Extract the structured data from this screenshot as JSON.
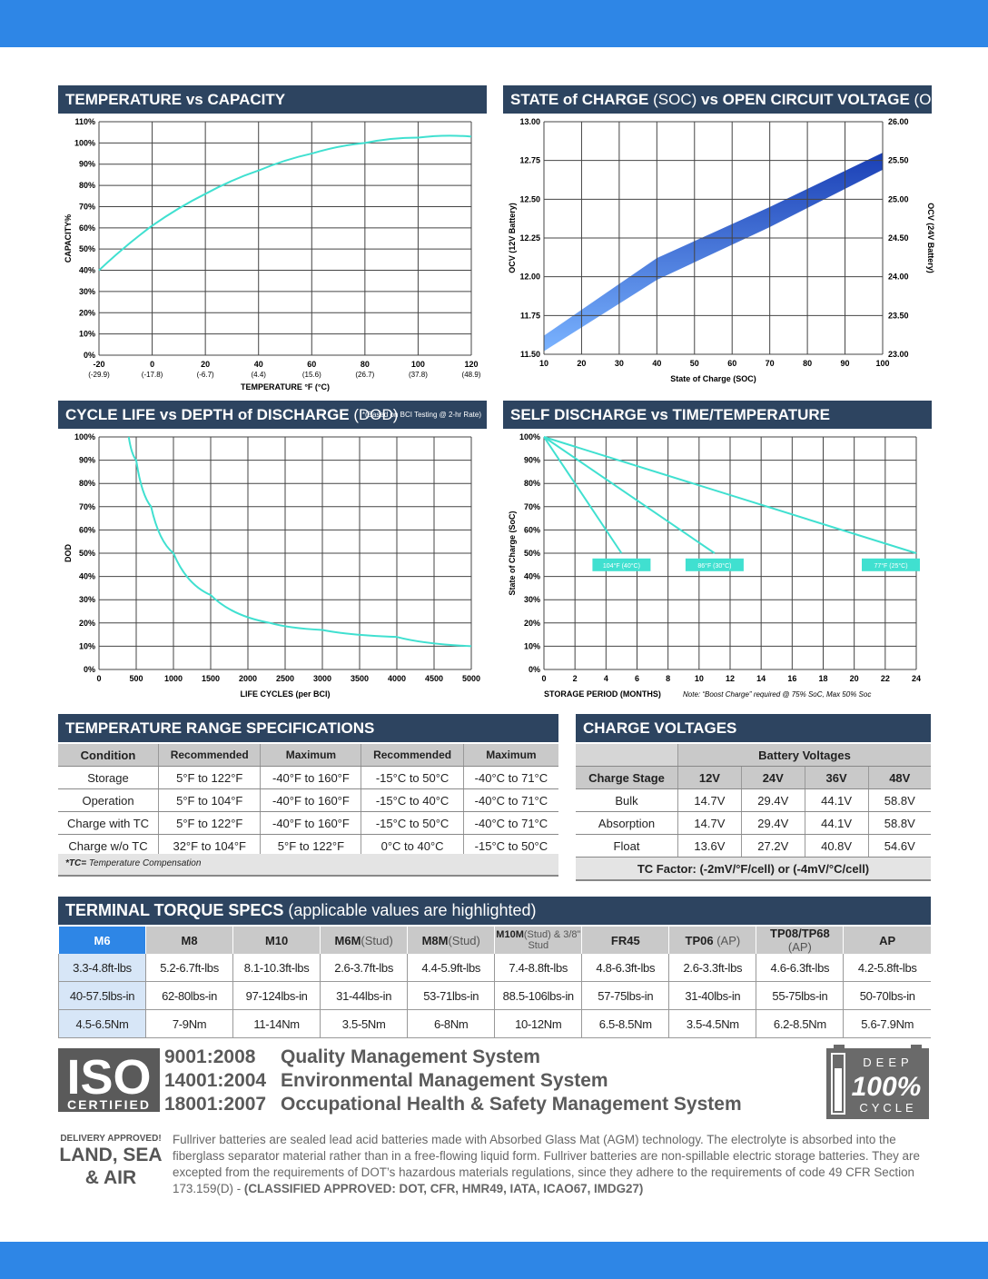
{
  "colors": {
    "accent": "#2e86e6",
    "header": "#2d4460",
    "curve": "#40e0d0"
  },
  "temp_capacity": {
    "title_bold": "TEMPERATURE vs CAPACITY",
    "ylabel": "CAPACITY%",
    "xlabel": "TEMPERATURE °F (°C)",
    "yticks": [
      "0%",
      "10%",
      "20%",
      "30%",
      "40%",
      "50%",
      "60%",
      "70%",
      "80%",
      "90%",
      "100%",
      "110%"
    ],
    "xticks": [
      "-20",
      "0",
      "20",
      "40",
      "60",
      "80",
      "100",
      "120"
    ],
    "xticks_c": [
      "(-29.9)",
      "(-17.8)",
      "(-6.7)",
      "(4.4)",
      "(15.6)",
      "(26.7)",
      "(37.8)",
      "(48.9)"
    ]
  },
  "soc_ocv": {
    "title_a": "STATE of CHARGE",
    "title_b": " (SOC) ",
    "title_c": "vs OPEN CIRCUIT VOLTAGE",
    "title_d": " (OCV)",
    "ylabel": "OCV (12V Battery)",
    "y2label": "OCV (24V Battery)",
    "xlabel": "State of Charge (SOC)",
    "yticks": [
      "11.50",
      "11.75",
      "12.00",
      "12.25",
      "12.50",
      "12.75",
      "13.00"
    ],
    "y2ticks": [
      "23.00",
      "23.50",
      "24.00",
      "24.50",
      "25.00",
      "25.50",
      "26.00"
    ],
    "xticks": [
      "10",
      "20",
      "30",
      "40",
      "50",
      "60",
      "70",
      "80",
      "90",
      "100"
    ]
  },
  "cycle_life": {
    "title_a": "CYCLE LIFE vs DEPTH of DISCHARGE",
    "title_b": " (DOD)",
    "note": "*(Based on BCI Testing @ 2-hr Rate)",
    "ylabel": "DOD",
    "xlabel": "LIFE CYCLES (per BCI)",
    "yticks": [
      "0%",
      "10%",
      "20%",
      "30%",
      "40%",
      "50%",
      "60%",
      "70%",
      "80%",
      "90%",
      "100%"
    ],
    "xticks": [
      "0",
      "500",
      "1000",
      "1500",
      "2000",
      "2500",
      "3000",
      "3500",
      "4000",
      "4500",
      "5000"
    ]
  },
  "self_discharge": {
    "title": "SELF DISCHARGE vs TIME/TEMPERATURE",
    "ylabel": "State of Charge (SoC)",
    "xlabel": "STORAGE PERIOD (MONTHS)",
    "note": "Note: “Boost Charge” required @ 75% SoC, Max 50% Soc",
    "yticks": [
      "0%",
      "10%",
      "20%",
      "30%",
      "40%",
      "50%",
      "60%",
      "70%",
      "80%",
      "90%",
      "100%"
    ],
    "xticks": [
      "0",
      "2",
      "4",
      "6",
      "8",
      "10",
      "12",
      "14",
      "16",
      "18",
      "20",
      "22",
      "24"
    ],
    "labels": [
      "104°F (40°C)",
      "86°F (30°C)",
      "77°F (25°C)"
    ]
  },
  "chart_data": [
    {
      "type": "line",
      "title": "TEMPERATURE vs CAPACITY",
      "xlabel": "TEMPERATURE °F (°C)",
      "ylabel": "CAPACITY%",
      "xlim": [
        -20,
        120
      ],
      "ylim": [
        0,
        110
      ],
      "series": [
        {
          "x": [
            -20,
            0,
            20,
            40,
            60,
            80,
            100,
            120
          ],
          "y": [
            40,
            61,
            76,
            87,
            95,
            100,
            102.5,
            103
          ]
        }
      ]
    },
    {
      "type": "area",
      "title": "STATE of CHARGE (SOC) vs OPEN CIRCUIT VOLTAGE (OCV)",
      "xlabel": "State of Charge (SOC)",
      "ylabel": "OCV (12V Battery)",
      "xlim": [
        10,
        100
      ],
      "ylim": [
        11.5,
        13.0
      ],
      "series": [
        {
          "name": "upper",
          "x": [
            10,
            40,
            70,
            100
          ],
          "y": [
            11.62,
            12.12,
            12.45,
            12.8
          ]
        },
        {
          "name": "lower",
          "x": [
            10,
            40,
            70,
            100
          ],
          "y": [
            11.52,
            11.98,
            12.32,
            12.69
          ]
        }
      ]
    },
    {
      "type": "line",
      "title": "CYCLE LIFE vs DEPTH of DISCHARGE (DOD)",
      "xlabel": "LIFE CYCLES (per BCI)",
      "ylabel": "DOD",
      "xlim": [
        0,
        5000
      ],
      "ylim": [
        0,
        100
      ],
      "series": [
        {
          "x": [
            400,
            500,
            700,
            1000,
            1500,
            2300,
            3000,
            4000,
            5000
          ],
          "y": [
            100,
            90,
            70,
            50,
            32,
            20,
            17,
            14,
            10
          ]
        }
      ]
    },
    {
      "type": "line",
      "title": "SELF DISCHARGE vs TIME/TEMPERATURE",
      "xlabel": "STORAGE PERIOD (MONTHS)",
      "ylabel": "State of Charge (SoC)",
      "xlim": [
        0,
        24
      ],
      "ylim": [
        0,
        100
      ],
      "series": [
        {
          "name": "104°F (40°C)",
          "x": [
            0,
            5
          ],
          "y": [
            100,
            50
          ]
        },
        {
          "name": "86°F (30°C)",
          "x": [
            0,
            11
          ],
          "y": [
            100,
            50
          ]
        },
        {
          "name": "77°F (25°C)",
          "x": [
            0,
            24
          ],
          "y": [
            100,
            50
          ]
        }
      ]
    }
  ],
  "temp_range": {
    "title": "TEMPERATURE RANGE SPECIFICATIONS",
    "headers": [
      "Condition",
      "Recommended",
      "Maximum",
      "Recommended",
      "Maximum"
    ],
    "rows": [
      [
        "Storage",
        "5°F to 122°F",
        "-40°F to 160°F",
        "-15°C to 50°C",
        "-40°C to 71°C"
      ],
      [
        "Operation",
        "5°F to 104°F",
        "-40°F to 160°F",
        "-15°C to 40°C",
        "-40°C to 71°C"
      ],
      [
        "Charge with TC",
        "5°F to 122°F",
        "-40°F to 160°F",
        "-15°C to 50°C",
        "-40°C to 71°C"
      ],
      [
        "Charge w/o TC",
        "32°F to 104°F",
        "5°F to 122°F",
        "0°C to 40°C",
        "-15°C to 50°C"
      ]
    ],
    "note_bold": "*TC=",
    "note": " Temperature Compensation"
  },
  "charge_voltages": {
    "title": "CHARGE VOLTAGES",
    "group_header": "Battery Voltages",
    "headers": [
      "Charge Stage",
      "12V",
      "24V",
      "36V",
      "48V"
    ],
    "rows": [
      [
        "Bulk",
        "14.7V",
        "29.4V",
        "44.1V",
        "58.8V"
      ],
      [
        "Absorption",
        "14.7V",
        "29.4V",
        "44.1V",
        "58.8V"
      ],
      [
        "Float",
        "13.6V",
        "27.2V",
        "40.8V",
        "54.6V"
      ]
    ],
    "tc_factor": "TC Factor: (-2mV/°F/cell) or (-4mV/°C/cell)"
  },
  "torque": {
    "title_bold": "TERMINAL TORQUE SPECS",
    "title_light": " (applicable values are highlighted)",
    "headers": [
      {
        "b": "M6",
        "s": ""
      },
      {
        "b": "M8",
        "s": ""
      },
      {
        "b": "M10",
        "s": ""
      },
      {
        "b": "M6M",
        "s": "(Stud)"
      },
      {
        "b": "M8M",
        "s": "(Stud)"
      },
      {
        "b": "M10M",
        "s": "(Stud) & 3/8” Stud"
      },
      {
        "b": "FR45",
        "s": ""
      },
      {
        "b": "TP06",
        "s": " (AP)"
      },
      {
        "b": "TP08/TP68",
        "s": " (AP)"
      },
      {
        "b": "AP",
        "s": ""
      }
    ],
    "rows": [
      [
        "3.3-4.8ft-lbs",
        "5.2-6.7ft-lbs",
        "8.1-10.3ft-lbs",
        "2.6-3.7ft-lbs",
        "4.4-5.9ft-lbs",
        "7.4-8.8ft-lbs",
        "4.8-6.3ft-lbs",
        "2.6-3.3ft-lbs",
        "4.6-6.3ft-lbs",
        "4.2-5.8ft-lbs"
      ],
      [
        "40-57.5lbs-in",
        "62-80lbs-in",
        "97-124lbs-in",
        "31-44lbs-in",
        "53-71lbs-in",
        "88.5-106lbs-in",
        "57-75lbs-in",
        "31-40lbs-in",
        "55-75lbs-in",
        "50-70lbs-in"
      ],
      [
        "4.5-6.5Nm",
        "7-9Nm",
        "11-14Nm",
        "3.5-5Nm",
        "6-8Nm",
        "10-12Nm",
        "6.5-8.5Nm",
        "3.5-4.5Nm",
        "6.2-8.5Nm",
        "5.6-7.9Nm"
      ]
    ]
  },
  "iso": {
    "logo_text": "ISO",
    "logo_sub": "CERTIFIED",
    "items": [
      {
        "num": "9001:2008",
        "text": "Quality Management System"
      },
      {
        "num": "14001:2004",
        "text": "Environmental Management System"
      },
      {
        "num": "18001:2007",
        "text": "Occupational Health & Safety Management System"
      }
    ],
    "badge_top": "DEEP",
    "badge_mid": "100%",
    "badge_bot": "CYCLE"
  },
  "delivery": {
    "small": "DELIVERY APPROVED!",
    "line1": "LAND, SEA",
    "line2": "& AIR"
  },
  "description": "Fullriver batteries are sealed lead acid batteries made with Absorbed Glass Mat (AGM) technology. The electrolyte is absorbed into the fiberglass separator material rather than in a free-flowing liquid form. Fullriver batteries are non-spillable electric storage batteries.  They are excepted from the requirements of DOT’s hazardous materials regulations, since they adhere to the requirements of code 49 CFR Section 173.159(D) - ",
  "description_bold": "(CLASSIFIED APPROVED: DOT, CFR, HMR49, IATA, ICAO67, IMDG27)"
}
